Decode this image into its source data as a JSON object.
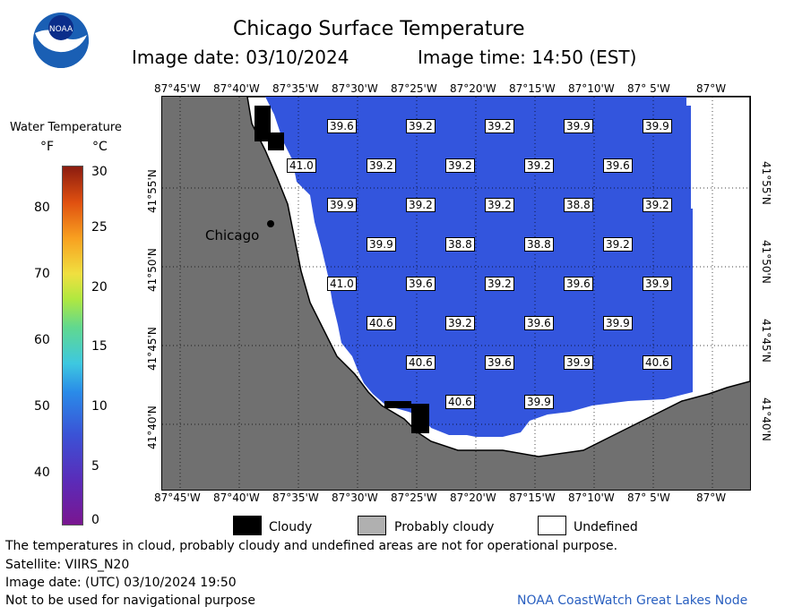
{
  "header": {
    "title": "Chicago Surface Temperature",
    "image_date": "Image date: 03/10/2024",
    "image_time": "Image time: 14:50 (EST)"
  },
  "logo": {
    "text": "NOAA"
  },
  "colorbar": {
    "title": "Water Temperature",
    "unit_f": "°F",
    "unit_c": "°C",
    "f_ticks": [
      "80",
      "70",
      "60",
      "50",
      "40"
    ],
    "c_ticks": [
      "30",
      "25",
      "20",
      "15",
      "10",
      "5",
      "0"
    ]
  },
  "map": {
    "lon_labels": [
      "87°45'W",
      "87°40'W",
      "87°35'W",
      "87°30'W",
      "87°25'W",
      "87°20'W",
      "87°15'W",
      "87°10'W",
      "87° 5'W",
      "87°W"
    ],
    "lat_labels": [
      "41°55'N",
      "41°50'N",
      "41°45'N",
      "41°40'N"
    ],
    "city": "Chicago",
    "values": [
      {
        "t": "39.6"
      },
      {
        "t": "39.2"
      },
      {
        "t": "39.2"
      },
      {
        "t": "39.9"
      },
      {
        "t": "39.9"
      },
      {
        "t": "41.0"
      },
      {
        "t": "39.2"
      },
      {
        "t": "39.2"
      },
      {
        "t": "39.2"
      },
      {
        "t": "39.6"
      },
      {
        "t": "39.9"
      },
      {
        "t": "39.2"
      },
      {
        "t": "39.2"
      },
      {
        "t": "38.8"
      },
      {
        "t": "39.2"
      },
      {
        "t": "39.9"
      },
      {
        "t": "38.8"
      },
      {
        "t": "38.8"
      },
      {
        "t": "39.2"
      },
      {
        "t": "41.0"
      },
      {
        "t": "39.6"
      },
      {
        "t": "39.2"
      },
      {
        "t": "39.6"
      },
      {
        "t": "39.9"
      },
      {
        "t": "40.6"
      },
      {
        "t": "39.2"
      },
      {
        "t": "39.6"
      },
      {
        "t": "39.9"
      },
      {
        "t": "40.6"
      },
      {
        "t": "39.6"
      },
      {
        "t": "39.9"
      },
      {
        "t": "40.6"
      },
      {
        "t": "40.6"
      },
      {
        "t": "39.9"
      }
    ],
    "colors": {
      "water": "#3355dd",
      "land": "#707070",
      "cloud": "#000000",
      "prob_cloud": "#b0b0b0",
      "undefined": "#ffffff"
    }
  },
  "legend": {
    "cloudy": "Cloudy",
    "probably_cloudy": "Probably cloudy",
    "undefined": "Undefined"
  },
  "footer": {
    "disclaimer": "The temperatures in cloud, probably cloudy and undefined areas are not for operational purpose.",
    "satellite": "Satellite: VIIRS_N20",
    "utc_date": "Image date: (UTC) 03/10/2024  19:50",
    "nav": "Not to be used for navigational purpose",
    "credit": "NOAA CoastWatch Great Lakes Node"
  }
}
